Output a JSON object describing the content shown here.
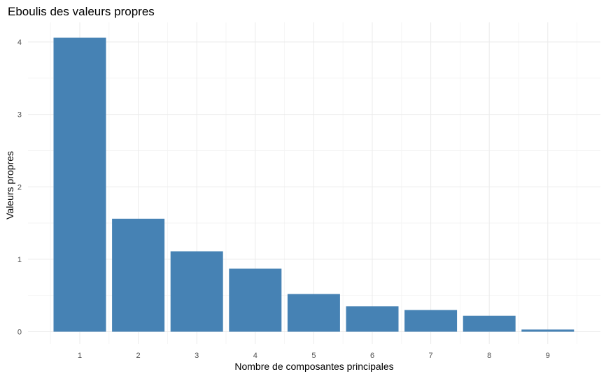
{
  "chart_data": {
    "type": "bar",
    "title": "Eboulis des valeurs propres",
    "xlabel": "Nombre de composantes principales",
    "ylabel": "Valeurs propres",
    "categories": [
      "1",
      "2",
      "3",
      "4",
      "5",
      "6",
      "7",
      "8",
      "9"
    ],
    "values": [
      4.06,
      1.56,
      1.11,
      0.87,
      0.52,
      0.35,
      0.3,
      0.22,
      0.03
    ],
    "yticks": [
      "0",
      "1",
      "2",
      "3",
      "4"
    ],
    "ylim": [
      0,
      4.3
    ],
    "grid": true,
    "legend": "none",
    "bar_color": "#4682B4"
  }
}
